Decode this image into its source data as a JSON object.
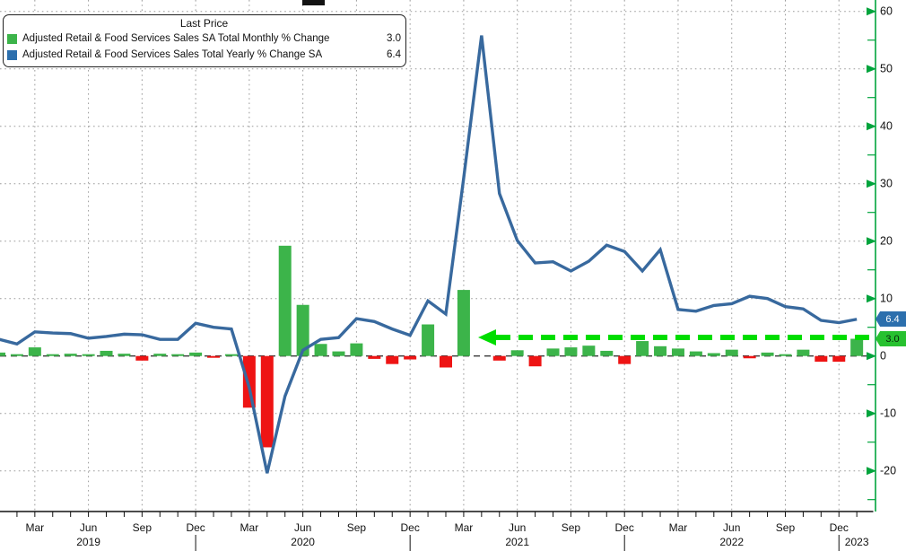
{
  "chart": {
    "legend": {
      "title": "Last Price",
      "series": [
        {
          "label": "Adjusted Retail & Food Services Sales SA Total Monthly % Change",
          "value": "3.0",
          "color": "#3cb44a"
        },
        {
          "label": "Adjusted Retail & Food Services Sales Total Yearly % Change SA",
          "value": "6.4",
          "color": "#2c6fad"
        }
      ]
    },
    "last_price": {
      "monthly": "3.0",
      "yearly": "6.4"
    },
    "colors": {
      "bar_up": "#3cb44a",
      "bar_down": "#ee1414",
      "line": "#38699e",
      "axis_green": "#00a43c",
      "arrow_green": "#00dd00",
      "grid": "#9a9a9a",
      "zero_line": "#3a3a3a",
      "axis_text": "#111111"
    }
  },
  "chart_data": {
    "type": "bar-line-combo",
    "title": "",
    "categories": [
      "Jan 2019",
      "Feb 2019",
      "Mar 2019",
      "Apr 2019",
      "May 2019",
      "Jun 2019",
      "Jul 2019",
      "Aug 2019",
      "Sep 2019",
      "Oct 2019",
      "Nov 2019",
      "Dec 2019",
      "Jan 2020",
      "Feb 2020",
      "Mar 2020",
      "Apr 2020",
      "May 2020",
      "Jun 2020",
      "Jul 2020",
      "Aug 2020",
      "Sep 2020",
      "Oct 2020",
      "Nov 2020",
      "Dec 2020",
      "Jan 2021",
      "Feb 2021",
      "Mar 2021",
      "Apr 2021",
      "May 2021",
      "Jun 2021",
      "Jul 2021",
      "Aug 2021",
      "Sep 2021",
      "Oct 2021",
      "Nov 2021",
      "Dec 2021",
      "Jan 2022",
      "Feb 2022",
      "Mar 2022",
      "Apr 2022",
      "May 2022",
      "Jun 2022",
      "Jul 2022",
      "Aug 2022",
      "Sep 2022",
      "Oct 2022",
      "Nov 2022",
      "Dec 2022",
      "Jan 2023"
    ],
    "series": [
      {
        "name": "Adjusted Retail & Food Services Sales SA Total Monthly % Change",
        "type": "bar",
        "last": 3.0,
        "values": [
          0.6,
          0.3,
          1.5,
          0.1,
          0.4,
          0.1,
          0.9,
          0.4,
          -0.8,
          0.4,
          0.3,
          0.6,
          -0.3,
          0.2,
          -9.0,
          -15.9,
          19.2,
          8.9,
          2.1,
          0.8,
          2.2,
          -0.5,
          -1.4,
          -0.6,
          5.5,
          -2.0,
          11.5,
          0.0,
          -0.8,
          1.0,
          -1.8,
          1.3,
          1.5,
          1.8,
          0.9,
          -1.4,
          2.6,
          1.7,
          1.3,
          0.8,
          0.5,
          1.1,
          -0.4,
          0.6,
          0.3,
          1.1,
          -1.0,
          -1.0,
          3.0
        ]
      },
      {
        "name": "Adjusted Retail & Food Services Sales Total Yearly % Change SA",
        "type": "line",
        "last": 6.4,
        "values": [
          2.9,
          2.1,
          4.2,
          4.0,
          3.9,
          3.1,
          3.4,
          3.8,
          3.7,
          2.9,
          2.9,
          5.7,
          5.0,
          4.7,
          -5.5,
          -20.4,
          -7.0,
          1.0,
          2.9,
          3.2,
          6.5,
          6.0,
          4.7,
          3.6,
          9.6,
          7.3,
          31.0,
          55.8,
          28.3,
          20.1,
          16.2,
          16.4,
          14.8,
          16.5,
          19.3,
          18.2,
          14.8,
          18.5,
          8.1,
          7.8,
          8.8,
          9.1,
          10.4,
          10.0,
          8.6,
          8.2,
          6.2,
          5.8,
          6.4
        ]
      }
    ],
    "ylim": [
      -27,
      62
    ],
    "y_ticks": [
      60,
      50,
      40,
      30,
      20,
      10,
      0,
      -10,
      -20
    ],
    "y_minor_ticks": [
      55,
      45,
      35,
      25,
      15,
      5,
      -5,
      -15,
      -25
    ],
    "x_labeled_months": [
      "Mar",
      "Jun",
      "Sep",
      "Dec"
    ],
    "year_label_indices": [
      5,
      17,
      29,
      41,
      48
    ],
    "grid": "dotted",
    "legend_position": "top-left",
    "y_axis_side": "right",
    "annotations": [
      {
        "type": "horizontal-dashed-arrow",
        "value": 3.0,
        "pointing": "left",
        "to_category": "Apr 2021",
        "color": "#00dd00"
      }
    ]
  }
}
